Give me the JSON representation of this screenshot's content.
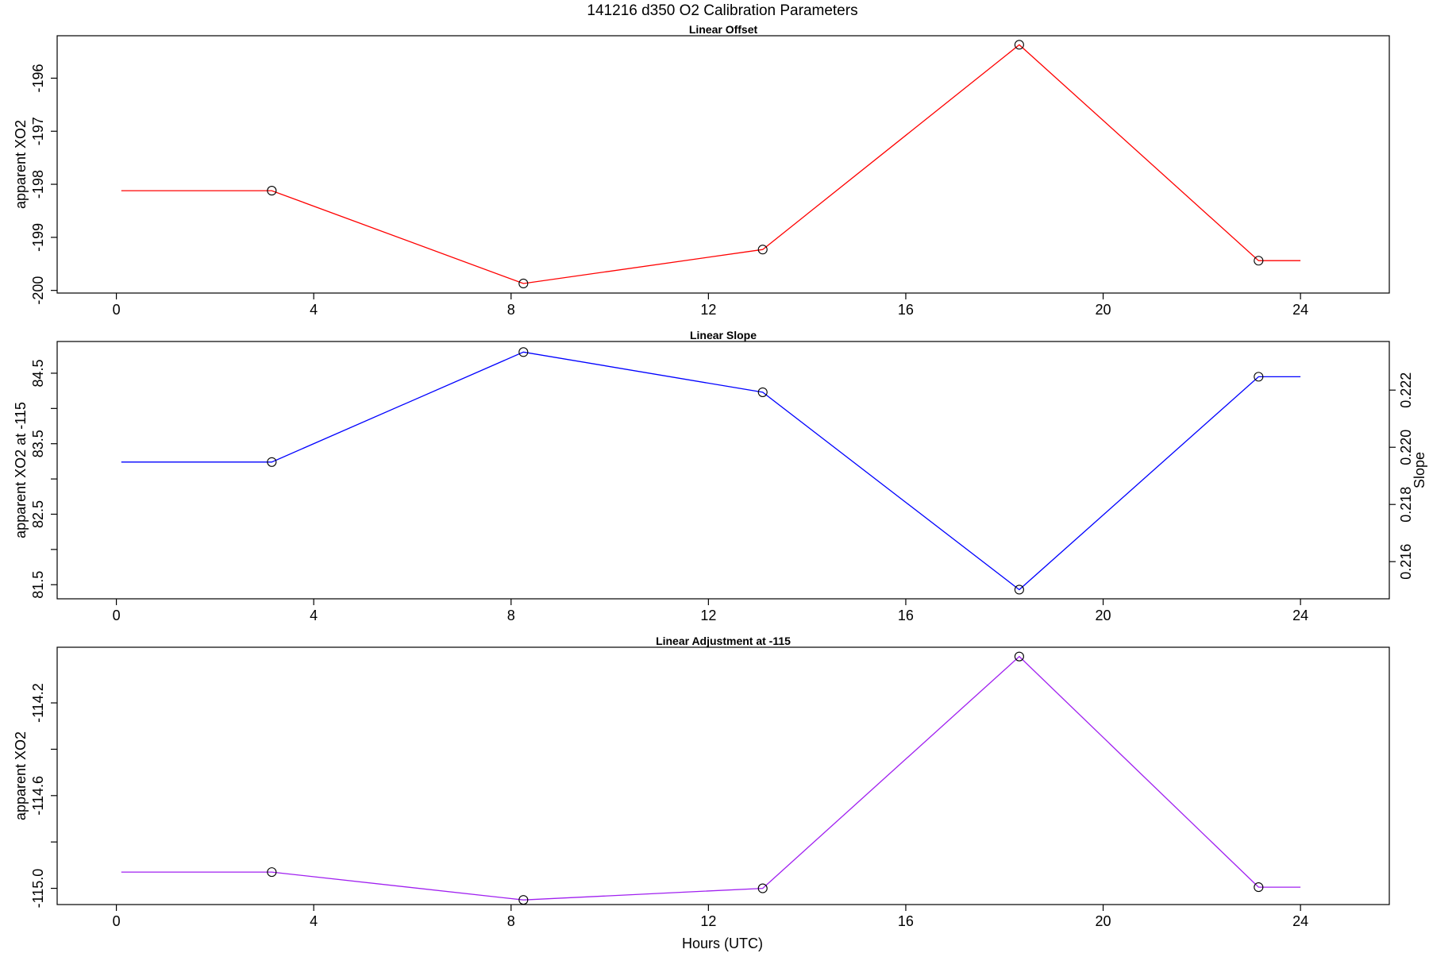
{
  "figure": {
    "title": "141216   d350   O2 Calibration Parameters",
    "xlabel": "Hours (UTC)"
  },
  "chart_data": [
    {
      "type": "line",
      "title": "Linear Offset",
      "xlabel": "",
      "ylabel": "apparent XO2",
      "xlim": [
        -1.2,
        25.8
      ],
      "ylim": [
        -200.05,
        -195.2
      ],
      "x_ticks": [
        0,
        4,
        8,
        12,
        16,
        20,
        24
      ],
      "y_ticks": [
        -200,
        -199,
        -198,
        -197,
        -196
      ],
      "y_tick_labels": [
        "-200",
        "-199",
        "-198",
        "-197",
        "-196"
      ],
      "color": "#ff0000",
      "line": [
        [
          0.1,
          -198.12
        ],
        [
          3.15,
          -198.12
        ],
        [
          8.25,
          -199.87
        ],
        [
          13.1,
          -199.23
        ],
        [
          18.3,
          -195.37
        ],
        [
          23.15,
          -199.44
        ],
        [
          24,
          -199.44
        ]
      ],
      "markers": [
        [
          3.15,
          -198.12
        ],
        [
          8.25,
          -199.87
        ],
        [
          13.1,
          -199.23
        ],
        [
          18.3,
          -195.37
        ],
        [
          23.15,
          -199.44
        ]
      ]
    },
    {
      "type": "line",
      "title": "Linear Slope",
      "xlabel": "",
      "ylabel": "apparent XO2 at -115",
      "y2label": "Slope",
      "xlim": [
        -1.2,
        25.8
      ],
      "ylim": [
        81.3,
        84.95
      ],
      "y_ticks": [
        81.5,
        82,
        82.5,
        83,
        83.5,
        84,
        84.5
      ],
      "y_tick_labels": [
        "81.5",
        "",
        "82.5",
        "",
        "83.5",
        "",
        "84.5"
      ],
      "y2_ticks": [
        0.216,
        0.218,
        0.22,
        0.222
      ],
      "y2_tick_labels": [
        "0.216",
        "0.218",
        "0.220",
        "0.222"
      ],
      "y2_range_at_ylim": [
        0.2147,
        0.2237
      ],
      "color": "#0000ff",
      "line": [
        [
          0.1,
          83.24
        ],
        [
          3.15,
          83.24
        ],
        [
          8.25,
          84.8
        ],
        [
          13.1,
          84.23
        ],
        [
          18.3,
          81.43
        ],
        [
          23.15,
          84.45
        ],
        [
          24,
          84.45
        ]
      ],
      "markers": [
        [
          3.15,
          83.24
        ],
        [
          8.25,
          84.8
        ],
        [
          13.1,
          84.23
        ],
        [
          18.3,
          81.43
        ],
        [
          23.15,
          84.45
        ]
      ]
    },
    {
      "type": "line",
      "title": "Linear Adjustment at -115",
      "xlabel": "Hours (UTC)",
      "ylabel": "apparent XO2",
      "xlim": [
        -1.2,
        25.8
      ],
      "ylim": [
        -115.07,
        -113.96
      ],
      "y_ticks": [
        -115.0,
        -114.8,
        -114.6,
        -114.4,
        -114.2
      ],
      "y_tick_labels": [
        "-115.0",
        "",
        "-114.6",
        "",
        "-114.2"
      ],
      "color": "#a020f0",
      "line": [
        [
          0.1,
          -114.93
        ],
        [
          3.15,
          -114.93
        ],
        [
          8.25,
          -115.05
        ],
        [
          13.1,
          -115.0
        ],
        [
          18.3,
          -114.0
        ],
        [
          23.15,
          -114.995
        ],
        [
          24,
          -114.995
        ]
      ],
      "markers": [
        [
          3.15,
          -114.93
        ],
        [
          8.25,
          -115.05
        ],
        [
          13.1,
          -115.0
        ],
        [
          18.3,
          -114.0
        ],
        [
          23.15,
          -114.995
        ]
      ]
    }
  ]
}
